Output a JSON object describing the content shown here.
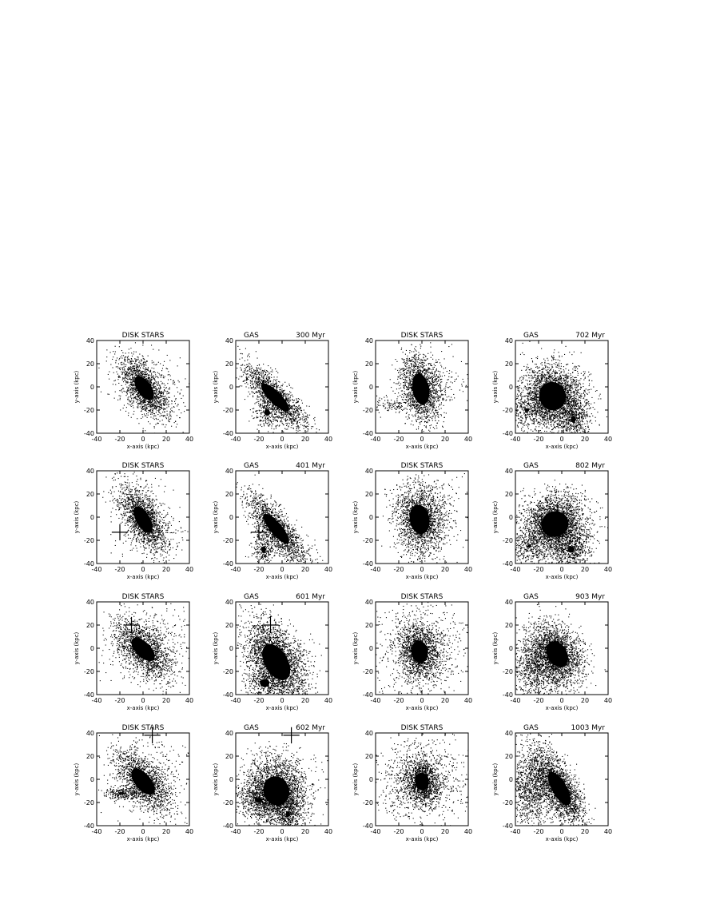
{
  "figure": {
    "grid_rows": 4,
    "grid_cols": 4
  },
  "chart_data": [
    {
      "type": "scatter",
      "title": "DISK STARS",
      "time": "",
      "xlabel": "x-axis (kpc)",
      "ylabel": "y-axis (kpc)",
      "xlim": [
        -40,
        40
      ],
      "ylim": [
        -40,
        40
      ],
      "xticks": [
        "-40",
        "-20",
        "0",
        "20",
        "40"
      ],
      "yticks": [
        "40",
        "20",
        "0",
        "-20",
        "-40"
      ],
      "blobs": [
        {
          "cx": 1,
          "cy": -1,
          "sx": 7,
          "sy": 14,
          "rot": 35,
          "n": 1500,
          "dense": 0.85
        },
        {
          "cx": 3,
          "cy": 2,
          "sx": 15,
          "sy": 22,
          "rot": 35,
          "n": 350,
          "dense": 0
        }
      ],
      "marker": null
    },
    {
      "type": "scatter",
      "title": "GAS",
      "time": "300 Myr",
      "xlabel": "x-axis (kpc)",
      "ylabel": "y-axis (kpc)",
      "xlim": [
        -40,
        40
      ],
      "ylim": [
        -40,
        40
      ],
      "xticks": [
        "-40",
        "-20",
        "0",
        "20",
        "40"
      ],
      "yticks": [
        "40",
        "20",
        "0",
        "-20",
        "-40"
      ],
      "blobs": [
        {
          "cx": -6,
          "cy": -9,
          "sx": 6,
          "sy": 19,
          "rot": 45,
          "n": 1500,
          "dense": 0.85
        },
        {
          "cx": -13,
          "cy": -22,
          "sx": 6,
          "sy": 7,
          "rot": 0,
          "n": 260,
          "dense": 0.4
        }
      ],
      "marker": null
    },
    {
      "type": "scatter",
      "title": "DISK STARS",
      "time": "",
      "xlabel": "x-axis (kpc)",
      "ylabel": "y-axis (kpc)",
      "xlim": [
        -40,
        40
      ],
      "ylim": [
        -40,
        40
      ],
      "xticks": [
        "-40",
        "-20",
        "0",
        "20",
        "40"
      ],
      "yticks": [
        "40",
        "20",
        "0",
        "-20",
        "-40"
      ],
      "blobs": [
        {
          "cx": -1,
          "cy": -2,
          "sx": 8,
          "sy": 15,
          "rot": 10,
          "n": 1600,
          "dense": 0.9
        },
        {
          "cx": 8,
          "cy": 8,
          "sx": 14,
          "sy": 12,
          "rot": 0,
          "n": 200,
          "dense": 0
        },
        {
          "cx": -25,
          "cy": -15,
          "sx": 10,
          "sy": 4,
          "rot": 0,
          "n": 120,
          "dense": 0
        }
      ],
      "marker": null
    },
    {
      "type": "scatter",
      "title": "GAS",
      "time": "702 Myr",
      "xlabel": "x-axis (kpc)",
      "ylabel": "y-axis (kpc)",
      "xlim": [
        -40,
        40
      ],
      "ylim": [
        -40,
        40
      ],
      "xticks": [
        "-40",
        "-20",
        "0",
        "20",
        "40"
      ],
      "yticks": [
        "40",
        "20",
        "0",
        "-20",
        "-40"
      ],
      "blobs": [
        {
          "cx": -8,
          "cy": -8,
          "sx": 13,
          "sy": 14,
          "rot": 20,
          "n": 2600,
          "dense": 0.88
        },
        {
          "cx": 10,
          "cy": -28,
          "sx": 7,
          "sy": 10,
          "rot": 0,
          "n": 500,
          "dense": 0.3
        },
        {
          "cx": -30,
          "cy": -20,
          "sx": 9,
          "sy": 8,
          "rot": 0,
          "n": 300,
          "dense": 0.2
        }
      ],
      "marker": null
    },
    {
      "type": "scatter",
      "title": "DISK STARS",
      "time": "",
      "xlabel": "x-axis (kpc)",
      "ylabel": "y-axis (kpc)",
      "xlim": [
        -40,
        40
      ],
      "ylim": [
        -40,
        40
      ],
      "xticks": [
        "-40",
        "-20",
        "0",
        "20",
        "40"
      ],
      "yticks": [
        "40",
        "20",
        "0",
        "-20",
        "-40"
      ],
      "blobs": [
        {
          "cx": 0,
          "cy": -2,
          "sx": 7,
          "sy": 15,
          "rot": 30,
          "n": 1600,
          "dense": 0.85
        },
        {
          "cx": 3,
          "cy": 3,
          "sx": 15,
          "sy": 22,
          "rot": 30,
          "n": 300,
          "dense": 0
        }
      ],
      "marker": {
        "x": -20,
        "y": -13,
        "size": 7
      }
    },
    {
      "type": "scatter",
      "title": "GAS",
      "time": "401 Myr",
      "xlabel": "x-axis (kpc)",
      "ylabel": "y-axis (kpc)",
      "xlim": [
        -40,
        40
      ],
      "ylim": [
        -40,
        40
      ],
      "xticks": [
        "-40",
        "-20",
        "0",
        "20",
        "40"
      ],
      "yticks": [
        "40",
        "20",
        "0",
        "-20",
        "-40"
      ],
      "blobs": [
        {
          "cx": -5,
          "cy": -10,
          "sx": 6,
          "sy": 19,
          "rot": 40,
          "n": 1600,
          "dense": 0.85
        },
        {
          "cx": -16,
          "cy": -28,
          "sx": 5,
          "sy": 7,
          "rot": 0,
          "n": 260,
          "dense": 0.4
        }
      ],
      "marker": {
        "x": -20,
        "y": -13,
        "size": 7
      }
    },
    {
      "type": "scatter",
      "title": "DISK STARS",
      "time": "",
      "xlabel": "x-axis (kpc)",
      "ylabel": "y-axis (kpc)",
      "xlim": [
        -40,
        40
      ],
      "ylim": [
        -40,
        40
      ],
      "xticks": [
        "-40",
        "-20",
        "0",
        "20",
        "40"
      ],
      "yticks": [
        "40",
        "20",
        "0",
        "-20",
        "-40"
      ],
      "blobs": [
        {
          "cx": -2,
          "cy": -2,
          "sx": 10,
          "sy": 15,
          "rot": 10,
          "n": 1700,
          "dense": 0.85
        },
        {
          "cx": 5,
          "cy": 5,
          "sx": 16,
          "sy": 16,
          "rot": 0,
          "n": 300,
          "dense": 0
        }
      ],
      "marker": null
    },
    {
      "type": "scatter",
      "title": "GAS",
      "time": "802 Myr",
      "xlabel": "x-axis (kpc)",
      "ylabel": "y-axis (kpc)",
      "xlim": [
        -40,
        40
      ],
      "ylim": [
        -40,
        40
      ],
      "xticks": [
        "-40",
        "-20",
        "0",
        "20",
        "40"
      ],
      "yticks": [
        "40",
        "20",
        "0",
        "-20",
        "-40"
      ],
      "blobs": [
        {
          "cx": -6,
          "cy": -6,
          "sx": 14,
          "sy": 13,
          "rot": 20,
          "n": 2700,
          "dense": 0.85
        },
        {
          "cx": 8,
          "cy": -28,
          "sx": 9,
          "sy": 9,
          "rot": 0,
          "n": 550,
          "dense": 0.3
        },
        {
          "cx": -28,
          "cy": -25,
          "sx": 8,
          "sy": 8,
          "rot": 0,
          "n": 300,
          "dense": 0.2
        }
      ],
      "marker": null
    },
    {
      "type": "scatter",
      "title": "DISK STARS",
      "time": "",
      "xlabel": "x-axis (kpc)",
      "ylabel": "y-axis (kpc)",
      "xlim": [
        -40,
        40
      ],
      "ylim": [
        -40,
        40
      ],
      "xticks": [
        "-40",
        "-20",
        "0",
        "20",
        "40"
      ],
      "yticks": [
        "40",
        "20",
        "0",
        "-20",
        "-40"
      ],
      "blobs": [
        {
          "cx": 0,
          "cy": -1,
          "sx": 8,
          "sy": 16,
          "rot": 45,
          "n": 1500,
          "dense": 0.8
        },
        {
          "cx": 5,
          "cy": 5,
          "sx": 18,
          "sy": 18,
          "rot": 30,
          "n": 400,
          "dense": 0
        }
      ],
      "marker": {
        "x": -10,
        "y": 20,
        "size": 7
      }
    },
    {
      "type": "scatter",
      "title": "GAS",
      "time": "601 Myr",
      "xlabel": "x-axis (kpc)",
      "ylabel": "y-axis (kpc)",
      "xlim": [
        -40,
        40
      ],
      "ylim": [
        -40,
        40
      ],
      "xticks": [
        "-40",
        "-20",
        "0",
        "20",
        "40"
      ],
      "yticks": [
        "40",
        "20",
        "0",
        "-20",
        "-40"
      ],
      "blobs": [
        {
          "cx": -5,
          "cy": -12,
          "sx": 11,
          "sy": 19,
          "rot": 30,
          "n": 2700,
          "dense": 0.9
        },
        {
          "cx": -15,
          "cy": -30,
          "sx": 8,
          "sy": 7,
          "rot": 0,
          "n": 300,
          "dense": 0.5
        }
      ],
      "marker": {
        "x": -10,
        "y": 20,
        "size": 7
      }
    },
    {
      "type": "scatter",
      "title": "DISK STARS",
      "time": "",
      "xlabel": "x-axis (kpc)",
      "ylabel": "y-axis (kpc)",
      "xlim": [
        -40,
        40
      ],
      "ylim": [
        -40,
        40
      ],
      "xticks": [
        "-40",
        "-20",
        "0",
        "20",
        "40"
      ],
      "yticks": [
        "40",
        "20",
        "0",
        "-20",
        "-40"
      ],
      "blobs": [
        {
          "cx": -2,
          "cy": -3,
          "sx": 9,
          "sy": 12,
          "rot": 10,
          "n": 1400,
          "dense": 0.8
        },
        {
          "cx": 0,
          "cy": 0,
          "sx": 20,
          "sy": 20,
          "rot": 0,
          "n": 700,
          "dense": 0
        }
      ],
      "marker": null
    },
    {
      "type": "scatter",
      "title": "GAS",
      "time": "903 Myr",
      "xlabel": "x-axis (kpc)",
      "ylabel": "y-axis (kpc)",
      "xlim": [
        -40,
        40
      ],
      "ylim": [
        -40,
        40
      ],
      "xticks": [
        "-40",
        "-20",
        "0",
        "20",
        "40"
      ],
      "yticks": [
        "40",
        "20",
        "0",
        "-20",
        "-40"
      ],
      "blobs": [
        {
          "cx": -4,
          "cy": -5,
          "sx": 10,
          "sy": 14,
          "rot": 30,
          "n": 2000,
          "dense": 0.85
        },
        {
          "cx": -22,
          "cy": -15,
          "sx": 12,
          "sy": 14,
          "rot": 0,
          "n": 1100,
          "dense": 0
        }
      ],
      "marker": null
    },
    {
      "type": "scatter",
      "title": "DISK STARS",
      "time": "",
      "xlabel": "x-axis (kpc)",
      "ylabel": "y-axis (kpc)",
      "xlim": [
        -40,
        40
      ],
      "ylim": [
        -40,
        40
      ],
      "xticks": [
        "-40",
        "-20",
        "0",
        "20",
        "40"
      ],
      "yticks": [
        "40",
        "20",
        "0",
        "-20",
        "-40"
      ],
      "blobs": [
        {
          "cx": 0,
          "cy": -2,
          "sx": 8,
          "sy": 16,
          "rot": 40,
          "n": 1500,
          "dense": 0.85
        },
        {
          "cx": -18,
          "cy": -12,
          "sx": 9,
          "sy": 3,
          "rot": 0,
          "n": 250,
          "dense": 0.3
        },
        {
          "cx": 5,
          "cy": 5,
          "sx": 18,
          "sy": 18,
          "rot": 30,
          "n": 300,
          "dense": 0
        }
      ],
      "marker": {
        "x": 8,
        "y": 38,
        "size": 7
      }
    },
    {
      "type": "scatter",
      "title": "GAS",
      "time": "602 Myr",
      "xlabel": "x-axis (kpc)",
      "ylabel": "y-axis (kpc)",
      "xlim": [
        -40,
        40
      ],
      "ylim": [
        -40,
        40
      ],
      "xticks": [
        "-40",
        "-20",
        "0",
        "20",
        "40"
      ],
      "yticks": [
        "40",
        "20",
        "0",
        "-20",
        "-40"
      ],
      "blobs": [
        {
          "cx": -5,
          "cy": -10,
          "sx": 13,
          "sy": 15,
          "rot": 20,
          "n": 2600,
          "dense": 0.85
        },
        {
          "cx": -20,
          "cy": -18,
          "sx": 10,
          "sy": 7,
          "rot": 0,
          "n": 500,
          "dense": 0.3
        },
        {
          "cx": 5,
          "cy": -30,
          "sx": 6,
          "sy": 8,
          "rot": 0,
          "n": 300,
          "dense": 0.3
        }
      ],
      "marker": {
        "x": 8,
        "y": 38,
        "size": 7
      }
    },
    {
      "type": "scatter",
      "title": "DISK STARS",
      "time": "",
      "xlabel": "x-axis (kpc)",
      "ylabel": "y-axis (kpc)",
      "xlim": [
        -40,
        40
      ],
      "ylim": [
        -40,
        40
      ],
      "xticks": [
        "-40",
        "-20",
        "0",
        "20",
        "40"
      ],
      "yticks": [
        "40",
        "20",
        "0",
        "-20",
        "-40"
      ],
      "blobs": [
        {
          "cx": 0,
          "cy": -2,
          "sx": 7,
          "sy": 9,
          "rot": 10,
          "n": 1200,
          "dense": 0.85
        },
        {
          "cx": 0,
          "cy": -2,
          "sx": 20,
          "sy": 19,
          "rot": 0,
          "n": 900,
          "dense": 0
        }
      ],
      "marker": null
    },
    {
      "type": "scatter",
      "title": "GAS",
      "time": "1003 Myr",
      "xlabel": "x-axis (kpc)",
      "ylabel": "y-axis (kpc)",
      "xlim": [
        -40,
        40
      ],
      "ylim": [
        -40,
        40
      ],
      "xticks": [
        "-40",
        "-20",
        "0",
        "20",
        "40"
      ],
      "yticks": [
        "40",
        "20",
        "0",
        "-20",
        "-40"
      ],
      "blobs": [
        {
          "cx": -2,
          "cy": -8,
          "sx": 7,
          "sy": 18,
          "rot": 30,
          "n": 1900,
          "dense": 0.9
        },
        {
          "cx": -25,
          "cy": -5,
          "sx": 11,
          "sy": 18,
          "rot": 0,
          "n": 1300,
          "dense": 0
        }
      ],
      "marker": null
    }
  ]
}
